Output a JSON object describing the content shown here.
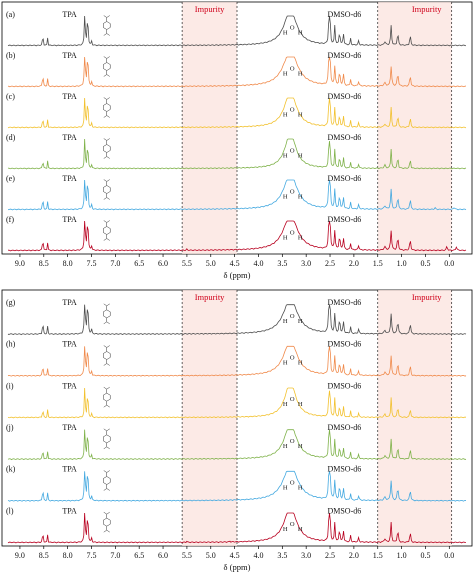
{
  "figure": {
    "colors": {
      "a": "#4d4d4d",
      "b": "#f08a4b",
      "c": "#f2c12e",
      "d": "#7fb24a",
      "e": "#44a9e0",
      "f": "#b8001f",
      "g": "#4d4d4d",
      "h": "#f08a4b",
      "i": "#f2c12e",
      "j": "#7fb24a",
      "k": "#44a9e0",
      "l": "#b8001f",
      "impurity_fill": "#fbe3de",
      "impurity_text": "#d0021b",
      "axis": "#000000"
    }
  },
  "chart_data": [
    {
      "type": "line",
      "title": "",
      "xlabel": "δ (ppm)",
      "ylabel": "",
      "x_reversed": true,
      "xlim": [
        9.25,
        -0.35
      ],
      "xticks": [
        "9.0",
        "8.5",
        "8.0",
        "7.5",
        "7.0",
        "6.5",
        "6.0",
        "5.5",
        "5.0",
        "4.5",
        "4.0",
        "3.5",
        "3.0",
        "2.5",
        "2.0",
        "1.5",
        "1.0",
        "0.5",
        "0.0"
      ],
      "impurity_regions": [
        {
          "label": "Impurity",
          "from": 5.6,
          "to": 4.45
        },
        {
          "label": "Impurity",
          "from": 1.5,
          "to": -0.05
        }
      ],
      "annotations": {
        "tpa": "TPA",
        "water": "H O H",
        "water_h1": "H",
        "water_o": "O",
        "water_h2": "H",
        "dmso": "DMSO-d6"
      },
      "series": [
        {
          "name": "(a)"
        },
        {
          "name": "(b)"
        },
        {
          "name": "(c)"
        },
        {
          "name": "(d)"
        },
        {
          "name": "(e)"
        },
        {
          "name": "(f)"
        }
      ]
    },
    {
      "type": "line",
      "title": "",
      "xlabel": "δ (ppm)",
      "ylabel": "",
      "x_reversed": true,
      "xlim": [
        9.25,
        -0.35
      ],
      "xticks": [
        "9.0",
        "8.5",
        "8.0",
        "7.5",
        "7.0",
        "6.5",
        "6.0",
        "5.5",
        "5.0",
        "4.5",
        "4.0",
        "3.5",
        "3.0",
        "2.5",
        "2.0",
        "1.5",
        "1.0",
        "0.5",
        "0.0"
      ],
      "impurity_regions": [
        {
          "label": "Impurity",
          "from": 5.6,
          "to": 4.45
        },
        {
          "label": "Impurity",
          "from": 1.5,
          "to": -0.05
        }
      ],
      "annotations": {
        "tpa": "TPA",
        "water": "H O H",
        "water_h1": "H",
        "water_o": "O",
        "water_h2": "H",
        "dmso": "DMSO-d6"
      },
      "series": [
        {
          "name": "(g)"
        },
        {
          "name": "(h)"
        },
        {
          "name": "(i)"
        },
        {
          "name": "(j)"
        },
        {
          "name": "(k)"
        },
        {
          "name": "(l)"
        }
      ]
    }
  ]
}
